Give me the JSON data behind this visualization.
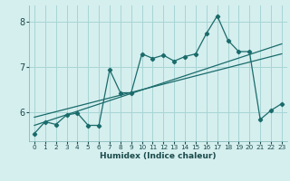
{
  "title": "",
  "xlabel": "Humidex (Indice chaleur)",
  "bg_color": "#d5eeee",
  "grid_color_major": "#a8d5d5",
  "grid_color_minor": "#c0e4e4",
  "line_color": "#1a6b6b",
  "xlim": [
    -0.5,
    23.5
  ],
  "ylim": [
    5.35,
    8.35
  ],
  "xticks": [
    0,
    1,
    2,
    3,
    4,
    5,
    6,
    7,
    8,
    9,
    10,
    11,
    12,
    13,
    14,
    15,
    16,
    17,
    18,
    19,
    20,
    21,
    22,
    23
  ],
  "yticks": [
    6,
    7,
    8
  ],
  "main_x": [
    0,
    1,
    2,
    3,
    4,
    5,
    6,
    7,
    8,
    9,
    10,
    11,
    12,
    13,
    14,
    15,
    16,
    17,
    18,
    19,
    20,
    21,
    22,
    23
  ],
  "main_y": [
    5.52,
    5.78,
    5.72,
    5.93,
    5.97,
    5.7,
    5.7,
    6.93,
    6.42,
    6.42,
    7.28,
    7.18,
    7.25,
    7.12,
    7.22,
    7.28,
    7.73,
    8.12,
    7.58,
    7.33,
    7.33,
    5.83,
    6.03,
    6.18
  ],
  "trend1_x": [
    0,
    23
  ],
  "trend1_y": [
    5.7,
    7.5
  ],
  "trend2_x": [
    0,
    23
  ],
  "trend2_y": [
    5.88,
    7.28
  ]
}
